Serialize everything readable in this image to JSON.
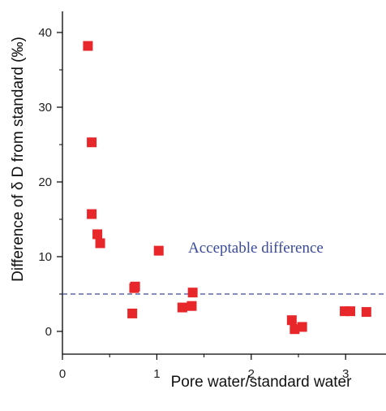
{
  "chart_data": {
    "type": "scatter",
    "xlabel": "Pore water/standard water",
    "ylabel": "Difference of  δ D from standard (‰)",
    "xlim": [
      0,
      3.5
    ],
    "ylim": [
      -3,
      43
    ],
    "x_major_ticks": [
      0,
      1,
      2,
      3
    ],
    "x_minor_ticks": [
      0.5,
      1.5,
      2.5
    ],
    "y_major_ticks": [
      0,
      10,
      20,
      30,
      40
    ],
    "y_minor_ticks": [
      5,
      15,
      25,
      35
    ],
    "grid": false,
    "colors": {
      "marker": "#e8272a",
      "reference": "#3a4a9c",
      "axis": "#000000"
    },
    "reference_line": {
      "y": 5,
      "style": "dashed",
      "label": "Acceptable difference"
    },
    "series": [
      {
        "marker": "square",
        "points": [
          {
            "x": 0.27,
            "y": 38.2
          },
          {
            "x": 0.31,
            "y": 25.3
          },
          {
            "x": 0.31,
            "y": 15.7
          },
          {
            "x": 0.37,
            "y": 13.0
          },
          {
            "x": 0.4,
            "y": 11.8
          },
          {
            "x": 0.74,
            "y": 2.4
          },
          {
            "x": 0.76,
            "y": 5.8
          },
          {
            "x": 0.77,
            "y": 6.0
          },
          {
            "x": 1.02,
            "y": 10.8
          },
          {
            "x": 1.27,
            "y": 3.2
          },
          {
            "x": 1.37,
            "y": 3.4
          },
          {
            "x": 1.38,
            "y": 5.2
          },
          {
            "x": 2.43,
            "y": 1.5
          },
          {
            "x": 2.46,
            "y": 0.3
          },
          {
            "x": 2.54,
            "y": 0.6
          },
          {
            "x": 2.99,
            "y": 2.7
          },
          {
            "x": 3.05,
            "y": 2.7
          },
          {
            "x": 3.22,
            "y": 2.6
          }
        ]
      }
    ]
  }
}
